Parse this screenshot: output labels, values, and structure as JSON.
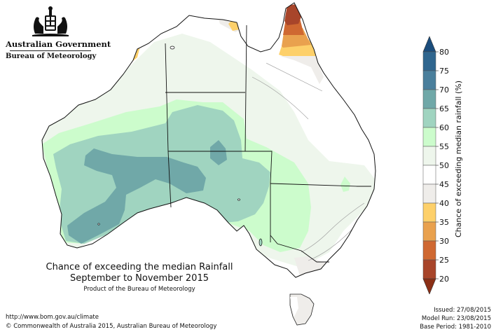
{
  "header": {
    "government": "Australian Government",
    "agency": "Bureau of Meteorology",
    "logo_icon": "australian-coat-of-arms-icon"
  },
  "map": {
    "title_line1": "Chance of exceeding the median Rainfall",
    "title_line2": "September to November 2015",
    "product_note": "Product of the Bureau of Meteorology",
    "region": "Australia"
  },
  "legend": {
    "label": "Chance of exceeding median rainfall (%)",
    "ticks": [
      "80",
      "75",
      "70",
      "65",
      "60",
      "55",
      "50",
      "45",
      "40",
      "35",
      "30",
      "25",
      "20"
    ],
    "bins": [
      {
        "range": "75-80",
        "color": "#2f668f"
      },
      {
        "range": "70-75",
        "color": "#4a7f9c"
      },
      {
        "range": "65-70",
        "color": "#70a8a8"
      },
      {
        "range": "60-65",
        "color": "#a0d4c0"
      },
      {
        "range": "55-60",
        "color": "#ccfccc"
      },
      {
        "range": "50-55",
        "color": "#eef6ec"
      },
      {
        "range": "45-50",
        "color": "#ffffff"
      },
      {
        "range": "40-45",
        "color": "#efedea"
      },
      {
        "range": "35-40",
        "color": "#fdd06a"
      },
      {
        "range": "30-35",
        "color": "#e9a14e"
      },
      {
        "range": "25-30",
        "color": "#cf6831"
      },
      {
        "range": "20-25",
        "color": "#a8452a"
      }
    ],
    "top_arrow_color": "#1b4d7c",
    "bottom_arrow_color": "#8b2f16"
  },
  "footer": {
    "url": "http://www.bom.gov.au/climate",
    "copyright": "© Commonwealth of Australia 2015, Australian Bureau of Meteorology",
    "issued": "Issued: 27/08/2015",
    "model_run": "Model Run: 23/08/2015",
    "base_period": "Base Period: 1981-2010"
  }
}
